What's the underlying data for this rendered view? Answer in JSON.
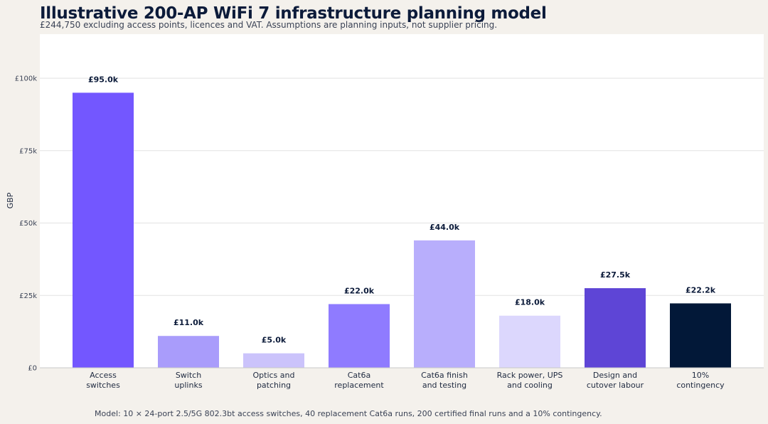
{
  "header": {
    "title": "Illustrative 200-AP WiFi 7 infrastructure planning model",
    "subtitle": "£244,750 excluding access points, licences and VAT. Assumptions are planning inputs, not supplier pricing."
  },
  "footnote": "Model: 10 × 24-port 2.5/5G 802.3bt access switches, 40 replacement Cat6a runs, 200 certified final runs and a 10% contingency.",
  "chart_data": {
    "type": "bar",
    "title": "Illustrative 200-AP WiFi 7 infrastructure planning model",
    "subtitle": "£244,750 excluding access points, licences and VAT. Assumptions are planning inputs, not supplier pricing.",
    "xlabel": "",
    "ylabel": "GBP",
    "ylim": [
      0,
      115000
    ],
    "grid": true,
    "yticks": [
      {
        "value": 0,
        "label": "£0"
      },
      {
        "value": 25000,
        "label": "£25k"
      },
      {
        "value": 50000,
        "label": "£50k"
      },
      {
        "value": 75000,
        "label": "£75k"
      },
      {
        "value": 100000,
        "label": "£100k"
      }
    ],
    "categories": [
      [
        "Access",
        "switches"
      ],
      [
        "Switch",
        "uplinks"
      ],
      [
        "Optics and",
        "patching"
      ],
      [
        "Cat6a",
        "replacement"
      ],
      [
        "Cat6a finish",
        "and testing"
      ],
      [
        "Rack power, UPS",
        "and cooling"
      ],
      [
        "Design and",
        "cutover labour"
      ],
      [
        "10%",
        "contingency"
      ]
    ],
    "values": [
      95000,
      11000,
      5000,
      22000,
      44000,
      18000,
      27500,
      22250
    ],
    "data_labels": [
      "£95.0k",
      "£11.0k",
      "£5.0k",
      "£22.0k",
      "£44.0k",
      "£18.0k",
      "£27.5k",
      "£22.2k"
    ],
    "colors": [
      "#7357ff",
      "#a99cfb",
      "#cbc3fb",
      "#8f7bff",
      "#b8aefc",
      "#dcd7fd",
      "#5e45d6",
      "#021838"
    ]
  }
}
